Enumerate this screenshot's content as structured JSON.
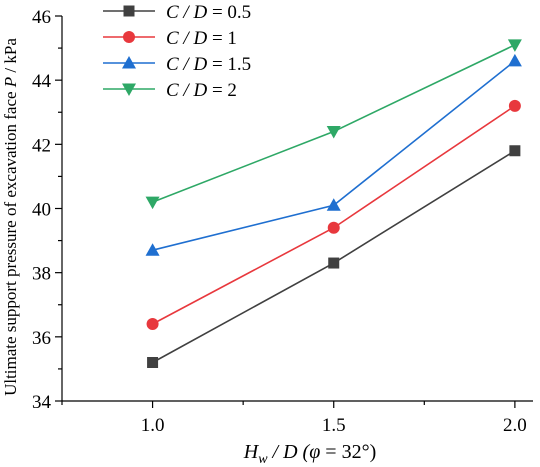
{
  "chart_data": {
    "type": "line",
    "x": [
      1.0,
      1.5,
      2.0
    ],
    "x_tick_labels": [
      "1.0",
      "1.5",
      "2.0"
    ],
    "xlim": [
      0.75,
      2.05
    ],
    "ylim": [
      34,
      46
    ],
    "y_ticks": [
      34,
      36,
      38,
      40,
      42,
      44,
      46
    ],
    "xlabel": {
      "var": "H",
      "sub": "w",
      "rest": " / D  (",
      "phi": "φ",
      "tail": " = 32°)"
    },
    "ylabel": {
      "text": "Ultimate support pressure of excavation face  ",
      "var": "P",
      "unit": " / kPa"
    },
    "legend_position": "top-left",
    "grid": false,
    "series": [
      {
        "name": "C / D = 0.5",
        "name_var": "C / D",
        "name_val": " = 0.5",
        "color": "#404040",
        "marker": "square",
        "values": [
          35.2,
          38.3,
          41.8
        ]
      },
      {
        "name": "C / D = 1",
        "name_var": "C / D",
        "name_val": " = 1",
        "color": "#e8383d",
        "marker": "circle",
        "values": [
          36.4,
          39.4,
          43.2
        ]
      },
      {
        "name": "C / D = 1.5",
        "name_var": "C / D",
        "name_val": " = 1.5",
        "color": "#1f6fd0",
        "marker": "triangle-up",
        "values": [
          38.7,
          40.1,
          44.6
        ]
      },
      {
        "name": "C / D = 2",
        "name_var": "C / D",
        "name_val": " = 2",
        "color": "#2ea866",
        "marker": "triangle-down",
        "values": [
          40.2,
          42.4,
          45.1
        ]
      }
    ]
  }
}
